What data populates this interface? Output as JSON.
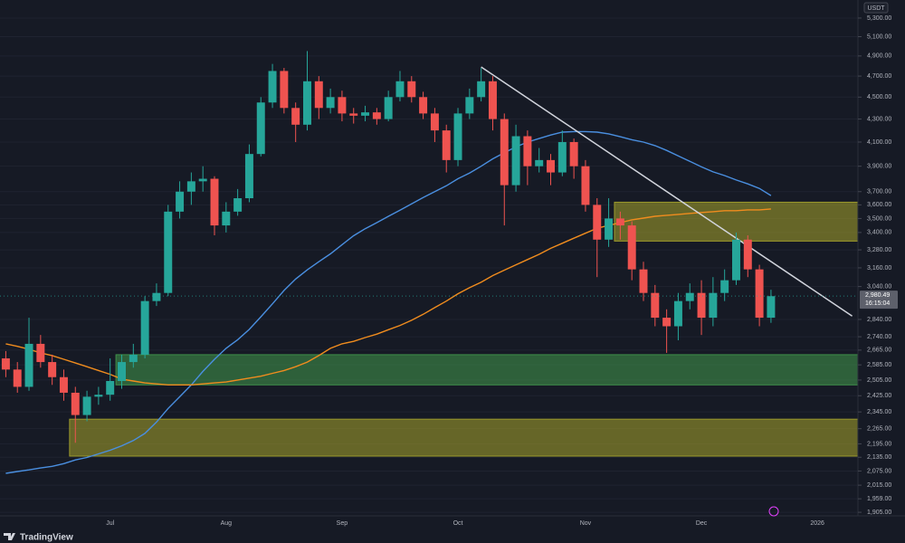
{
  "chart_data": {
    "type": "candlestick",
    "currency": "USDT",
    "brand": "TradingView",
    "log_scale": true,
    "grid": true,
    "up_color": "#26a69a",
    "down_color": "#ef5350",
    "categories": [
      null,
      null,
      null,
      null,
      null,
      null,
      null,
      null,
      null,
      "Jul",
      null,
      null,
      null,
      null,
      null,
      null,
      null,
      null,
      null,
      "Aug",
      null,
      null,
      null,
      null,
      null,
      null,
      null,
      null,
      null,
      "Sep",
      null,
      null,
      null,
      null,
      null,
      null,
      null,
      null,
      null,
      "Oct",
      null,
      null,
      null,
      null,
      null,
      null,
      null,
      null,
      null,
      null,
      "Nov",
      null,
      null,
      null,
      null,
      null,
      null,
      null,
      null,
      null,
      "Dec",
      null,
      null,
      null,
      null,
      null,
      null,
      null,
      null,
      null,
      "2026",
      null,
      null,
      null
    ],
    "open": [
      2620,
      2560,
      2470,
      2700,
      2600,
      2520,
      2440,
      2330,
      2420,
      2430,
      2500,
      2600,
      2640,
      2950,
      3000,
      3550,
      3700,
      3780,
      3800,
      3450,
      3550,
      3650,
      4000,
      4450,
      4750,
      4400,
      4250,
      4650,
      4400,
      4500,
      4350,
      4330,
      4360,
      4300,
      4500,
      4650,
      4500,
      4350,
      4200,
      3950,
      4350,
      4500,
      4650,
      4300,
      3750,
      4150,
      3900,
      3950,
      3850,
      4100,
      3900,
      3600,
      3350,
      3500,
      3450,
      3150,
      3000,
      2850,
      2800,
      2950,
      3000,
      2850,
      3000,
      3080,
      3350,
      3150,
      2850,
      null,
      null,
      null,
      null,
      null,
      null,
      null
    ],
    "high": [
      2660,
      2600,
      2850,
      2750,
      2640,
      2560,
      2470,
      2450,
      2470,
      2620,
      2640,
      2700,
      2980,
      3060,
      3600,
      3780,
      3850,
      3900,
      3820,
      3620,
      3720,
      4080,
      4500,
      4820,
      4780,
      4450,
      4950,
      4700,
      4580,
      4560,
      4400,
      4420,
      4400,
      4560,
      4750,
      4700,
      4550,
      4400,
      4250,
      4400,
      4580,
      4780,
      4700,
      4350,
      4250,
      4200,
      4050,
      4000,
      4200,
      4130,
      3950,
      3650,
      3650,
      3550,
      3480,
      3200,
      3050,
      2900,
      3000,
      3060,
      3080,
      3100,
      3150,
      3400,
      3380,
      3180,
      3020,
      null,
      null,
      null,
      null,
      null,
      null,
      null
    ],
    "low": [
      2520,
      2440,
      2450,
      2570,
      2480,
      2400,
      2200,
      2300,
      2380,
      2400,
      2460,
      2570,
      2620,
      2920,
      2980,
      3500,
      3600,
      3700,
      3380,
      3400,
      3520,
      3620,
      3980,
      4400,
      4350,
      4100,
      4200,
      4300,
      4350,
      4280,
      4260,
      4280,
      4250,
      4280,
      4460,
      4450,
      4300,
      4100,
      3850,
      3900,
      4300,
      4460,
      4200,
      3450,
      3700,
      3750,
      3850,
      3750,
      3820,
      3800,
      3550,
      3100,
      3300,
      3350,
      3080,
      2950,
      2800,
      2650,
      2720,
      2900,
      2750,
      2800,
      2950,
      3050,
      3100,
      2800,
      2820,
      null,
      null,
      null,
      null,
      null,
      null,
      null
    ],
    "close": [
      2560,
      2470,
      2700,
      2600,
      2520,
      2440,
      2330,
      2420,
      2430,
      2500,
      2600,
      2640,
      2950,
      3000,
      3550,
      3700,
      3780,
      3800,
      3450,
      3550,
      3650,
      4000,
      4450,
      4750,
      4400,
      4250,
      4650,
      4400,
      4500,
      4350,
      4330,
      4360,
      4300,
      4500,
      4650,
      4500,
      4350,
      4200,
      3950,
      4350,
      4500,
      4650,
      4300,
      3750,
      4150,
      3900,
      3950,
      3850,
      4100,
      3900,
      3600,
      3350,
      3500,
      3450,
      3150,
      3000,
      2850,
      2800,
      2950,
      3000,
      2850,
      3000,
      3080,
      3350,
      3150,
      2850,
      2980,
      null,
      null,
      null,
      null,
      null,
      null,
      null
    ],
    "series": [
      {
        "color": "#4a8fe0",
        "values": [
          2065,
          2073,
          2080,
          2088,
          2095,
          2107,
          2123,
          2134,
          2150,
          2166,
          2186,
          2210,
          2243,
          2296,
          2362,
          2420,
          2480,
          2550,
          2615,
          2675,
          2723,
          2782,
          2855,
          2933,
          3016,
          3088,
          3147,
          3200,
          3253,
          3315,
          3377,
          3427,
          3470,
          3516,
          3560,
          3607,
          3655,
          3700,
          3745,
          3800,
          3845,
          3900,
          3960,
          4010,
          4060,
          4100,
          4130,
          4160,
          4185,
          4190,
          4190,
          4185,
          4170,
          4145,
          4120,
          4100,
          4070,
          4030,
          3985,
          3940,
          3895,
          3855,
          3825,
          3790,
          3760,
          3725,
          3670,
          null,
          null,
          null,
          null,
          null,
          null,
          null
        ]
      },
      {
        "color": "#f08c1e",
        "values": [
          2700,
          2686,
          2670,
          2650,
          2635,
          2615,
          2595,
          2575,
          2555,
          2535,
          2510,
          2500,
          2490,
          2485,
          2480,
          2480,
          2480,
          2485,
          2490,
          2495,
          2505,
          2515,
          2525,
          2540,
          2555,
          2575,
          2600,
          2635,
          2675,
          2700,
          2714,
          2735,
          2755,
          2780,
          2805,
          2835,
          2870,
          2910,
          2950,
          2995,
          3033,
          3067,
          3110,
          3145,
          3180,
          3215,
          3250,
          3290,
          3325,
          3360,
          3395,
          3430,
          3450,
          3470,
          3490,
          3503,
          3516,
          3523,
          3530,
          3537,
          3544,
          3550,
          3557,
          3557,
          3563,
          3563,
          3570,
          null,
          null,
          null,
          null,
          null,
          null,
          null
        ]
      }
    ],
    "zones": [
      {
        "low": 3340,
        "high": 3620,
        "start": 53,
        "color": "#9c9a2c"
      },
      {
        "low": 2480,
        "high": 2640,
        "start": 10,
        "color": "#3f8f4a"
      },
      {
        "low": 2140,
        "high": 2310,
        "start": 6,
        "color": "#9c9a2c"
      }
    ],
    "trendline": {
      "start": 41,
      "start_value": 4790,
      "end": 73,
      "end_value": 2860,
      "color": "#d1d4dc"
    },
    "last_price": 2980.49,
    "last_price_label": "2,980.49",
    "countdown": "16:15:04",
    "ylim": [
      1891,
      5502
    ],
    "yticks": [
      {
        "value": 5300,
        "label": "5,300.00"
      },
      {
        "value": 5100,
        "label": "5,100.00"
      },
      {
        "value": 4900,
        "label": "4,900.00"
      },
      {
        "value": 4700,
        "label": "4,700.00"
      },
      {
        "value": 4500,
        "label": "4,500.00"
      },
      {
        "value": 4300,
        "label": "4,300.00"
      },
      {
        "value": 4100,
        "label": "4,100.00"
      },
      {
        "value": 3900,
        "label": "3,900.00"
      },
      {
        "value": 3700,
        "label": "3,700.00"
      },
      {
        "value": 3600,
        "label": "3,600.00"
      },
      {
        "value": 3500,
        "label": "3,500.00"
      },
      {
        "value": 3400,
        "label": "3,400.00"
      },
      {
        "value": 3280,
        "label": "3,280.00"
      },
      {
        "value": 3160,
        "label": "3,160.00"
      },
      {
        "value": 3040,
        "label": "3,040.00"
      },
      {
        "value": 2840,
        "label": "2,840.00"
      },
      {
        "value": 2740,
        "label": "2,740.00"
      },
      {
        "value": 2665,
        "label": "2,665.00"
      },
      {
        "value": 2585,
        "label": "2,585.00"
      },
      {
        "value": 2505,
        "label": "2,505.00"
      },
      {
        "value": 2425,
        "label": "2,425.00"
      },
      {
        "value": 2345,
        "label": "2,345.00"
      },
      {
        "value": 2265,
        "label": "2,265.00"
      },
      {
        "value": 2195,
        "label": "2,195.00"
      },
      {
        "value": 2135,
        "label": "2,135.00"
      },
      {
        "value": 2075,
        "label": "2,075.00"
      },
      {
        "value": 2015,
        "label": "2,015.00"
      },
      {
        "value": 1959,
        "label": "1,959.00"
      },
      {
        "value": 1905,
        "label": "1,905.00"
      }
    ]
  }
}
